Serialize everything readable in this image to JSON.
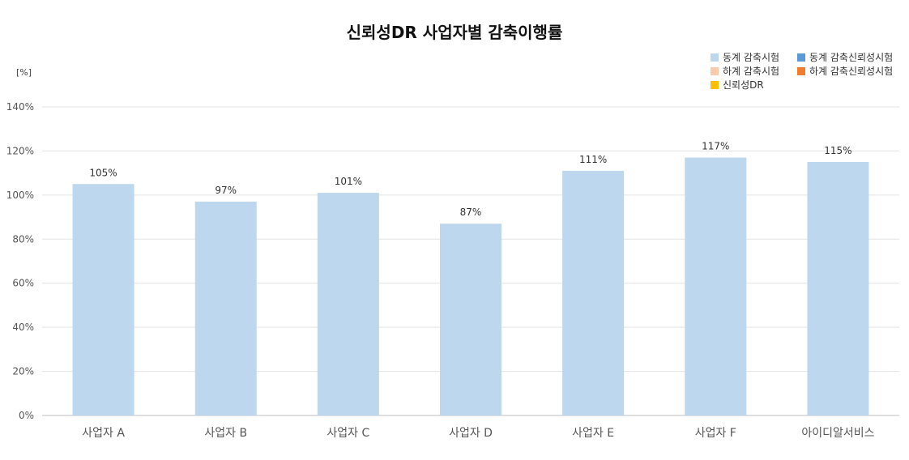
{
  "chart_data": {
    "type": "bar",
    "title": "신뢰성DR 사업자별 감축이행률",
    "unit_label": "[%]",
    "ylim": [
      0,
      140
    ],
    "yticks": [
      0,
      20,
      40,
      60,
      80,
      100,
      120,
      140
    ],
    "ytick_suffix": "%",
    "grid": true,
    "legend_position": "top-right",
    "categories": [
      "사업자 A",
      "사업자 B",
      "사업자 C",
      "사업자 D",
      "사업자 E",
      "사업자 F",
      "아이디알서비스"
    ],
    "series": [
      {
        "name": "동계 감축시험",
        "color": "#bdd7ee",
        "values": [
          105,
          97,
          101,
          87,
          111,
          117,
          115
        ],
        "labels": [
          "105%",
          "97%",
          "101%",
          "87%",
          "111%",
          "117%",
          "115%"
        ]
      }
    ],
    "legend": [
      {
        "name": "동계 감축시험",
        "color": "#bdd7ee"
      },
      {
        "name": "동계 감축신뢰성시험",
        "color": "#5b9bd5"
      },
      {
        "name": "하계 감축시험",
        "color": "#f8cbad"
      },
      {
        "name": "하계 감축신뢰성시험",
        "color": "#ed7d31"
      },
      {
        "name": "신뢰성DR",
        "color": "#ffc000"
      }
    ]
  }
}
